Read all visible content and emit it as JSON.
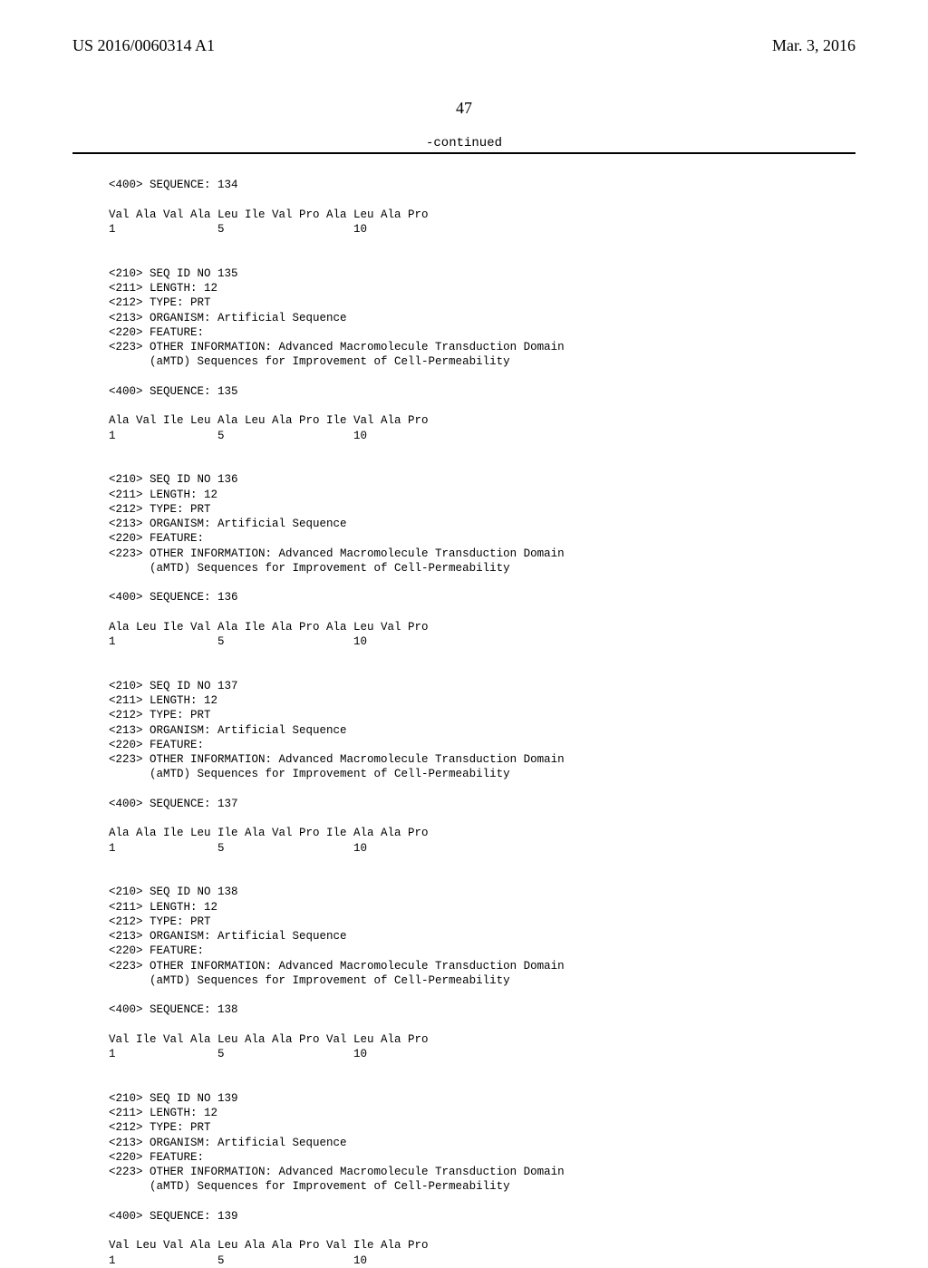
{
  "header": {
    "left": "US 2016/0060314 A1",
    "right": "Mar. 3, 2016"
  },
  "page_number": "47",
  "continued": "-continued",
  "entries": [
    {
      "seq400": "<400> SEQUENCE: 134",
      "seqline": "Val Ala Val Ala Leu Ile Val Pro Ala Leu Ala Pro",
      "numline": "1               5                   10"
    },
    {
      "seqid": "<210> SEQ ID NO 135",
      "len": "<211> LENGTH: 12",
      "type": "<212> TYPE: PRT",
      "org": "<213> ORGANISM: Artificial Sequence",
      "feat": "<220> FEATURE:",
      "oth1": "<223> OTHER INFORMATION: Advanced Macromolecule Transduction Domain",
      "oth2": "      (aMTD) Sequences for Improvement of Cell-Permeability",
      "seq400": "<400> SEQUENCE: 135",
      "seqline": "Ala Val Ile Leu Ala Leu Ala Pro Ile Val Ala Pro",
      "numline": "1               5                   10"
    },
    {
      "seqid": "<210> SEQ ID NO 136",
      "len": "<211> LENGTH: 12",
      "type": "<212> TYPE: PRT",
      "org": "<213> ORGANISM: Artificial Sequence",
      "feat": "<220> FEATURE:",
      "oth1": "<223> OTHER INFORMATION: Advanced Macromolecule Transduction Domain",
      "oth2": "      (aMTD) Sequences for Improvement of Cell-Permeability",
      "seq400": "<400> SEQUENCE: 136",
      "seqline": "Ala Leu Ile Val Ala Ile Ala Pro Ala Leu Val Pro",
      "numline": "1               5                   10"
    },
    {
      "seqid": "<210> SEQ ID NO 137",
      "len": "<211> LENGTH: 12",
      "type": "<212> TYPE: PRT",
      "org": "<213> ORGANISM: Artificial Sequence",
      "feat": "<220> FEATURE:",
      "oth1": "<223> OTHER INFORMATION: Advanced Macromolecule Transduction Domain",
      "oth2": "      (aMTD) Sequences for Improvement of Cell-Permeability",
      "seq400": "<400> SEQUENCE: 137",
      "seqline": "Ala Ala Ile Leu Ile Ala Val Pro Ile Ala Ala Pro",
      "numline": "1               5                   10"
    },
    {
      "seqid": "<210> SEQ ID NO 138",
      "len": "<211> LENGTH: 12",
      "type": "<212> TYPE: PRT",
      "org": "<213> ORGANISM: Artificial Sequence",
      "feat": "<220> FEATURE:",
      "oth1": "<223> OTHER INFORMATION: Advanced Macromolecule Transduction Domain",
      "oth2": "      (aMTD) Sequences for Improvement of Cell-Permeability",
      "seq400": "<400> SEQUENCE: 138",
      "seqline": "Val Ile Val Ala Leu Ala Ala Pro Val Leu Ala Pro",
      "numline": "1               5                   10"
    },
    {
      "seqid": "<210> SEQ ID NO 139",
      "len": "<211> LENGTH: 12",
      "type": "<212> TYPE: PRT",
      "org": "<213> ORGANISM: Artificial Sequence",
      "feat": "<220> FEATURE:",
      "oth1": "<223> OTHER INFORMATION: Advanced Macromolecule Transduction Domain",
      "oth2": "      (aMTD) Sequences for Improvement of Cell-Permeability",
      "seq400": "<400> SEQUENCE: 139",
      "seqline": "Val Leu Val Ala Leu Ala Ala Pro Val Ile Ala Pro",
      "numline": "1               5                   10"
    }
  ]
}
